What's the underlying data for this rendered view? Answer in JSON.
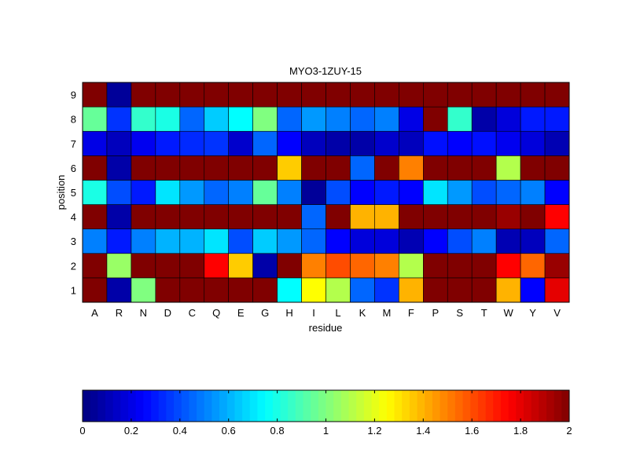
{
  "chart_data": {
    "type": "heatmap",
    "title": "MYO3-1ZUY-15",
    "xlabel": "residue",
    "ylabel": "position",
    "x_categories": [
      "A",
      "R",
      "N",
      "D",
      "C",
      "Q",
      "E",
      "G",
      "H",
      "I",
      "L",
      "K",
      "M",
      "F",
      "P",
      "S",
      "T",
      "W",
      "Y",
      "V"
    ],
    "y_categories": [
      "1",
      "2",
      "3",
      "4",
      "5",
      "6",
      "7",
      "8",
      "9"
    ],
    "colormap": "jet",
    "clim": [
      0,
      2
    ],
    "colorbar_ticks": [
      "0",
      "0.2",
      "0.4",
      "0.6",
      "0.8",
      "1",
      "1.2",
      "1.4",
      "1.6",
      "1.8",
      "2"
    ],
    "colorbar_placement": "bottom",
    "values_by_position": {
      "1": [
        2,
        0.08,
        1.0,
        2,
        2,
        2,
        2,
        2,
        0.75,
        1.25,
        1.1,
        0.45,
        0.35,
        1.4,
        2,
        2,
        2,
        1.4,
        0.25,
        1.8
      ],
      "2": [
        2,
        1.05,
        2,
        2,
        2,
        1.75,
        1.35,
        0.08,
        2,
        1.5,
        1.6,
        1.55,
        1.5,
        1.1,
        2,
        2,
        2,
        1.75,
        1.55,
        1.95
      ],
      "3": [
        0.5,
        0.3,
        0.5,
        0.6,
        0.6,
        0.7,
        0.4,
        0.65,
        0.55,
        0.45,
        0.25,
        0.18,
        0.18,
        0.1,
        0.25,
        0.4,
        0.5,
        0.1,
        0.12,
        0.45
      ],
      "4": [
        2,
        0.08,
        2,
        2,
        2,
        2,
        2,
        2,
        2,
        0.45,
        2,
        1.4,
        1.4,
        2,
        2,
        2,
        2,
        1.95,
        2,
        1.75
      ],
      "5": [
        0.8,
        0.4,
        0.3,
        0.7,
        0.55,
        0.45,
        0.5,
        0.95,
        0.5,
        0.05,
        0.4,
        0.25,
        0.3,
        0.25,
        0.7,
        0.55,
        0.4,
        0.45,
        0.5,
        0.25
      ],
      "6": [
        2,
        0.08,
        2,
        2,
        2,
        2,
        2,
        2,
        1.35,
        2,
        2,
        0.45,
        2,
        1.5,
        2,
        2,
        2,
        1.1,
        2,
        2
      ],
      "7": [
        0.2,
        0.12,
        0.22,
        0.3,
        0.33,
        0.35,
        0.15,
        0.45,
        0.25,
        0.12,
        0.08,
        0.08,
        0.15,
        0.12,
        0.28,
        0.25,
        0.28,
        0.22,
        0.18,
        0.1
      ],
      "8": [
        0.95,
        0.35,
        0.85,
        0.8,
        0.45,
        0.65,
        0.75,
        1.0,
        0.45,
        0.55,
        0.5,
        0.45,
        0.5,
        0.2,
        2,
        0.85,
        0.08,
        0.18,
        0.3,
        0.3
      ],
      "9": [
        2,
        0.05,
        2,
        2,
        2,
        2,
        2,
        2,
        2,
        2,
        2,
        2,
        2,
        2,
        2,
        2,
        2,
        2,
        2,
        2
      ]
    }
  }
}
